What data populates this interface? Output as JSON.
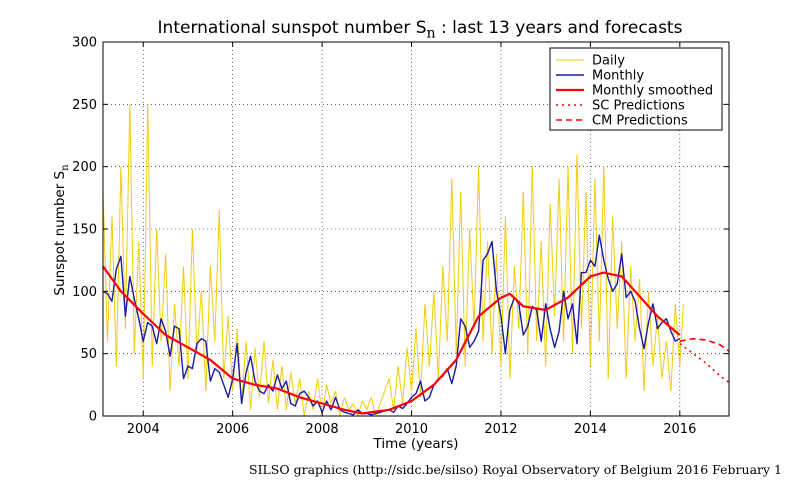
{
  "title": {
    "main": "International sunspot number S",
    "subscript": "n",
    "rest": ": last 13 years and forecasts"
  },
  "credit": "SILSO graphics (http://sidc.be/silso)  Royal Observatory of Belgium  2016 February 1",
  "colors": {
    "daily": "#f2cc0c",
    "monthly": "#1a1aa8",
    "smoothed": "#ff0000",
    "sc_pred": "#ff0000",
    "cm_pred": "#ff0000"
  },
  "chart_data": {
    "type": "line",
    "xlabel": "Time (years)",
    "ylabel_main": "Sunspot number S",
    "ylabel_sub": "n",
    "xlim": [
      2003.1,
      2017.1
    ],
    "ylim": [
      0,
      300
    ],
    "xticks": [
      2004,
      2006,
      2008,
      2010,
      2012,
      2014,
      2016
    ],
    "yticks": [
      0,
      50,
      100,
      150,
      200,
      250,
      300
    ],
    "grid": true,
    "legend_position": "top-right",
    "legend": [
      "Daily",
      "Monthly",
      "Monthly smoothed",
      "SC Predictions",
      "CM Predictions"
    ],
    "series": [
      {
        "name": "Daily",
        "style": "thin-yellow-line",
        "x": [
          2003.1,
          2003.2,
          2003.3,
          2003.4,
          2003.5,
          2003.6,
          2003.7,
          2003.8,
          2003.9,
          2004.0,
          2004.1,
          2004.2,
          2004.3,
          2004.4,
          2004.5,
          2004.6,
          2004.7,
          2004.8,
          2004.9,
          2005.0,
          2005.1,
          2005.2,
          2005.3,
          2005.4,
          2005.5,
          2005.6,
          2005.7,
          2005.8,
          2005.9,
          2006.0,
          2006.1,
          2006.2,
          2006.3,
          2006.4,
          2006.5,
          2006.6,
          2006.7,
          2006.8,
          2006.9,
          2007.0,
          2007.1,
          2007.2,
          2007.3,
          2007.4,
          2007.5,
          2007.6,
          2007.7,
          2007.8,
          2007.9,
          2008.0,
          2008.1,
          2008.2,
          2008.3,
          2008.4,
          2008.5,
          2008.6,
          2008.7,
          2008.8,
          2008.9,
          2009.0,
          2009.1,
          2009.2,
          2009.3,
          2009.4,
          2009.5,
          2009.6,
          2009.7,
          2009.8,
          2009.9,
          2010.0,
          2010.1,
          2010.2,
          2010.3,
          2010.4,
          2010.5,
          2010.6,
          2010.7,
          2010.8,
          2010.9,
          2011.0,
          2011.1,
          2011.2,
          2011.3,
          2011.4,
          2011.5,
          2011.6,
          2011.7,
          2011.8,
          2011.9,
          2012.0,
          2012.1,
          2012.2,
          2012.3,
          2012.4,
          2012.5,
          2012.6,
          2012.7,
          2012.8,
          2012.9,
          2013.0,
          2013.1,
          2013.2,
          2013.3,
          2013.4,
          2013.5,
          2013.6,
          2013.7,
          2013.8,
          2013.9,
          2014.0,
          2014.1,
          2014.2,
          2014.3,
          2014.4,
          2014.5,
          2014.6,
          2014.7,
          2014.8,
          2014.9,
          2015.0,
          2015.1,
          2015.2,
          2015.3,
          2015.4,
          2015.5,
          2015.6,
          2015.7,
          2015.8,
          2015.9,
          2016.0,
          2016.08
        ],
        "values": [
          180,
          60,
          160,
          40,
          200,
          70,
          250,
          50,
          140,
          30,
          250,
          40,
          150,
          60,
          130,
          20,
          90,
          40,
          120,
          30,
          150,
          50,
          100,
          20,
          120,
          60,
          165,
          30,
          80,
          20,
          70,
          10,
          60,
          5,
          55,
          15,
          60,
          10,
          45,
          5,
          40,
          5,
          35,
          10,
          30,
          0,
          20,
          5,
          30,
          0,
          25,
          10,
          20,
          0,
          15,
          5,
          10,
          0,
          12,
          5,
          15,
          0,
          10,
          20,
          30,
          5,
          40,
          10,
          55,
          20,
          70,
          15,
          90,
          40,
          100,
          30,
          120,
          60,
          190,
          50,
          180,
          40,
          150,
          70,
          200,
          60,
          140,
          50,
          130,
          40,
          160,
          30,
          120,
          70,
          180,
          50,
          200,
          60,
          140,
          40,
          170,
          80,
          190,
          60,
          200,
          50,
          210,
          70,
          180,
          40,
          190,
          60,
          200,
          30,
          160,
          70,
          140,
          30,
          120,
          60,
          110,
          20,
          100,
          40,
          80,
          30,
          60,
          20,
          90,
          40,
          90
        ]
      },
      {
        "name": "Monthly",
        "style": "blue-line",
        "x": [
          2003.1,
          2003.2,
          2003.3,
          2003.4,
          2003.5,
          2003.6,
          2003.7,
          2003.8,
          2003.9,
          2004.0,
          2004.1,
          2004.2,
          2004.3,
          2004.4,
          2004.5,
          2004.6,
          2004.7,
          2004.8,
          2004.9,
          2005.0,
          2005.1,
          2005.2,
          2005.3,
          2005.4,
          2005.5,
          2005.6,
          2005.7,
          2005.8,
          2005.9,
          2006.0,
          2006.1,
          2006.2,
          2006.3,
          2006.4,
          2006.5,
          2006.6,
          2006.7,
          2006.8,
          2006.9,
          2007.0,
          2007.1,
          2007.2,
          2007.3,
          2007.4,
          2007.5,
          2007.6,
          2007.7,
          2007.8,
          2007.9,
          2008.0,
          2008.1,
          2008.2,
          2008.3,
          2008.4,
          2008.5,
          2008.6,
          2008.7,
          2008.8,
          2008.9,
          2009.0,
          2009.1,
          2009.2,
          2009.3,
          2009.4,
          2009.5,
          2009.6,
          2009.7,
          2009.8,
          2009.9,
          2010.0,
          2010.1,
          2010.2,
          2010.3,
          2010.4,
          2010.5,
          2010.6,
          2010.7,
          2010.8,
          2010.9,
          2011.0,
          2011.1,
          2011.2,
          2011.3,
          2011.4,
          2011.5,
          2011.6,
          2011.7,
          2011.8,
          2011.9,
          2012.0,
          2012.1,
          2012.2,
          2012.3,
          2012.4,
          2012.5,
          2012.6,
          2012.7,
          2012.8,
          2012.9,
          2013.0,
          2013.1,
          2013.2,
          2013.3,
          2013.4,
          2013.5,
          2013.6,
          2013.7,
          2013.8,
          2013.9,
          2014.0,
          2014.1,
          2014.2,
          2014.3,
          2014.4,
          2014.5,
          2014.6,
          2014.7,
          2014.8,
          2014.9,
          2015.0,
          2015.1,
          2015.2,
          2015.3,
          2015.4,
          2015.5,
          2015.6,
          2015.7,
          2015.8,
          2015.9,
          2016.0
        ],
        "values": [
          100,
          98,
          92,
          118,
          128,
          80,
          112,
          94,
          78,
          60,
          75,
          72,
          58,
          78,
          68,
          48,
          72,
          70,
          30,
          40,
          38,
          58,
          62,
          60,
          28,
          38,
          35,
          25,
          15,
          30,
          58,
          10,
          35,
          48,
          28,
          20,
          18,
          25,
          20,
          33,
          22,
          28,
          10,
          8,
          18,
          20,
          15,
          8,
          12,
          3,
          12,
          5,
          15,
          5,
          3,
          2,
          1,
          5,
          2,
          2,
          1,
          2,
          3,
          4,
          5,
          3,
          8,
          6,
          10,
          15,
          18,
          28,
          12,
          15,
          25,
          30,
          32,
          38,
          26,
          40,
          78,
          72,
          55,
          60,
          68,
          125,
          130,
          140,
          100,
          80,
          50,
          85,
          95,
          90,
          65,
          72,
          88,
          85,
          60,
          90,
          70,
          55,
          68,
          100,
          78,
          90,
          58,
          115,
          115,
          125,
          120,
          145,
          125,
          110,
          100,
          106,
          130,
          95,
          100,
          92,
          70,
          54,
          75,
          90,
          70,
          75,
          78,
          68,
          60,
          62
        ],
        "note": "read from the blue curve"
      },
      {
        "name": "Monthly smoothed",
        "style": "thick-red-line",
        "x": [
          2003.1,
          2003.5,
          2004.0,
          2004.5,
          2005.0,
          2005.5,
          2006.0,
          2006.5,
          2007.0,
          2007.5,
          2008.0,
          2008.5,
          2008.9,
          2009.5,
          2010.0,
          2010.5,
          2011.0,
          2011.5,
          2012.0,
          2012.2,
          2012.5,
          2013.0,
          2013.5,
          2014.0,
          2014.3,
          2014.7,
          2015.0,
          2015.5,
          2016.0
        ],
        "values": [
          120,
          100,
          82,
          65,
          55,
          45,
          30,
          25,
          22,
          15,
          10,
          5,
          2,
          5,
          12,
          25,
          45,
          80,
          95,
          98,
          88,
          85,
          95,
          112,
          115,
          112,
          100,
          80,
          65
        ]
      },
      {
        "name": "SC Predictions",
        "style": "dotted-red-line",
        "x": [
          2016.0,
          2016.3,
          2016.6,
          2016.9,
          2017.1
        ],
        "values": [
          58,
          50,
          42,
          32,
          27
        ]
      },
      {
        "name": "CM Predictions",
        "style": "dashed-red-line",
        "x": [
          2016.0,
          2016.3,
          2016.6,
          2016.9,
          2017.1
        ],
        "values": [
          60,
          62,
          61,
          57,
          52
        ]
      }
    ]
  }
}
